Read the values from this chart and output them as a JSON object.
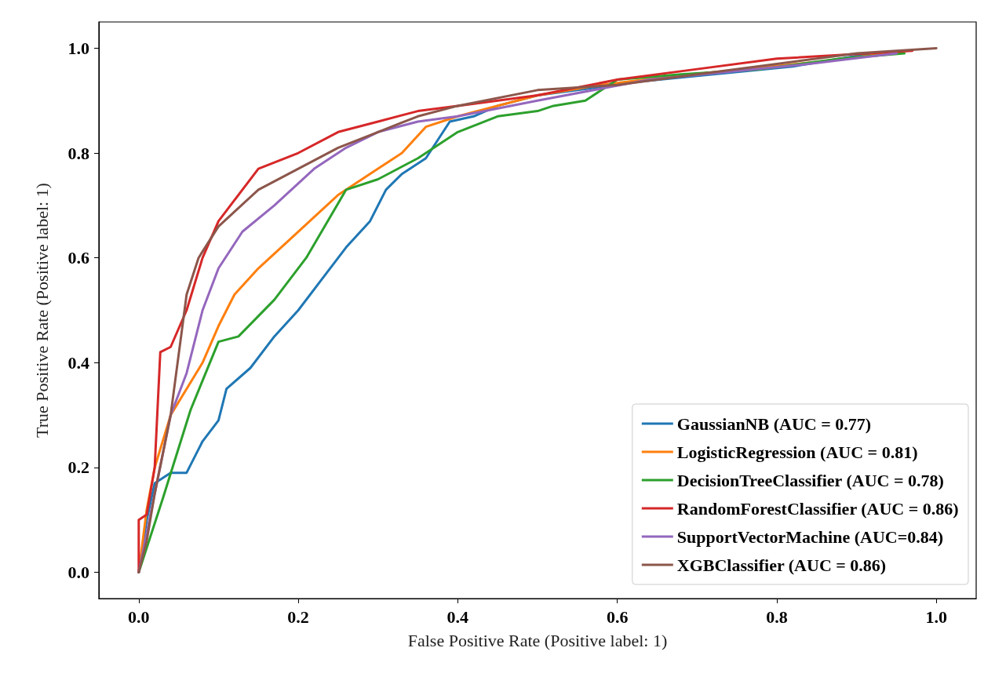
{
  "chart_data": {
    "type": "line",
    "xlabel": "False Positive Rate (Positive label: 1)",
    "ylabel": "True Positive Rate (Positive label: 1)",
    "xlim": [
      -0.05,
      1.05
    ],
    "ylim": [
      -0.05,
      1.05
    ],
    "xticks": [
      {
        "value": 0,
        "label": "0.0"
      },
      {
        "value": 0.2,
        "label": "0.2"
      },
      {
        "value": 0.4,
        "label": "0.4"
      },
      {
        "value": 0.6,
        "label": "0.6"
      },
      {
        "value": 0.8,
        "label": "0.8"
      },
      {
        "value": 1,
        "label": "1.0"
      }
    ],
    "yticks": [
      {
        "value": 0,
        "label": "0.0"
      },
      {
        "value": 0.2,
        "label": "0.2"
      },
      {
        "value": 0.4,
        "label": "0.4"
      },
      {
        "value": 0.6,
        "label": "0.6"
      },
      {
        "value": 0.8,
        "label": "0.8"
      },
      {
        "value": 1,
        "label": "1.0"
      }
    ],
    "grid": false,
    "legend": "bottom right",
    "line_style": "solid",
    "series": [
      {
        "name": "GaussianNB (AUC = 0.77)",
        "color": "#1f77b4",
        "x": [
          0,
          0.01,
          0.02,
          0.04,
          0.06,
          0.08,
          0.1,
          0.11,
          0.14,
          0.17,
          0.2,
          0.23,
          0.26,
          0.29,
          0.31,
          0.33,
          0.36,
          0.39,
          0.42,
          0.45,
          0.5,
          0.55,
          0.62,
          0.72,
          0.82,
          0.92
        ],
        "values": [
          0,
          0.1,
          0.17,
          0.19,
          0.19,
          0.25,
          0.29,
          0.35,
          0.39,
          0.45,
          0.5,
          0.56,
          0.62,
          0.67,
          0.73,
          0.76,
          0.79,
          0.86,
          0.87,
          0.89,
          0.91,
          0.92,
          0.935,
          0.95,
          0.965,
          0.99
        ]
      },
      {
        "name": "LogisticRegression (AUC = 0.81)",
        "color": "#ff7f0e",
        "x": [
          0,
          0.01,
          0.02,
          0.04,
          0.06,
          0.08,
          0.1,
          0.12,
          0.15,
          0.2,
          0.25,
          0.3,
          0.33,
          0.36,
          0.4,
          0.5,
          0.58,
          0.66,
          0.76,
          0.86,
          0.94
        ],
        "values": [
          0,
          0.12,
          0.2,
          0.3,
          0.35,
          0.4,
          0.47,
          0.53,
          0.58,
          0.65,
          0.72,
          0.77,
          0.8,
          0.85,
          0.87,
          0.91,
          0.93,
          0.945,
          0.96,
          0.975,
          0.99
        ]
      },
      {
        "name": "DecisionTreeClassifier (AUC = 0.78)",
        "color": "#2ca02c",
        "x": [
          0,
          0.03,
          0.065,
          0.1,
          0.125,
          0.17,
          0.21,
          0.26,
          0.3,
          0.35,
          0.4,
          0.45,
          0.5,
          0.52,
          0.56,
          0.6,
          0.68,
          0.78,
          0.88,
          0.96
        ],
        "values": [
          0,
          0.14,
          0.31,
          0.44,
          0.45,
          0.52,
          0.6,
          0.73,
          0.75,
          0.79,
          0.84,
          0.87,
          0.88,
          0.89,
          0.9,
          0.94,
          0.95,
          0.96,
          0.98,
          0.99
        ]
      },
      {
        "name": "RandomForestClassifier (AUC = 0.86)",
        "color": "#d62728",
        "x": [
          0,
          0,
          0.01,
          0.02,
          0.027,
          0.04,
          0.06,
          0.08,
          0.1,
          0.12,
          0.15,
          0.2,
          0.25,
          0.3,
          0.35,
          0.4,
          0.5,
          0.6,
          0.7,
          0.8,
          0.97
        ],
        "values": [
          0,
          0.1,
          0.11,
          0.2,
          0.42,
          0.43,
          0.5,
          0.6,
          0.67,
          0.71,
          0.77,
          0.8,
          0.84,
          0.86,
          0.88,
          0.89,
          0.91,
          0.94,
          0.96,
          0.98,
          0.995
        ]
      },
      {
        "name": "SupportVectorMachine (AUC=0.84)",
        "color": "#9467bd",
        "x": [
          0,
          0.02,
          0.04,
          0.06,
          0.08,
          0.1,
          0.13,
          0.17,
          0.22,
          0.26,
          0.3,
          0.35,
          0.4,
          0.5,
          0.64,
          0.74,
          0.84,
          0.95
        ],
        "values": [
          0,
          0.15,
          0.3,
          0.38,
          0.5,
          0.58,
          0.65,
          0.7,
          0.77,
          0.81,
          0.84,
          0.86,
          0.87,
          0.9,
          0.94,
          0.955,
          0.97,
          0.99
        ]
      },
      {
        "name": "XGBClassifier (AUC = 0.86)",
        "color": "#8c564b",
        "x": [
          0,
          0.01,
          0.02,
          0.04,
          0.06,
          0.075,
          0.1,
          0.15,
          0.2,
          0.25,
          0.3,
          0.35,
          0.4,
          0.5,
          0.6,
          0.7,
          0.8,
          0.9,
          1
        ],
        "values": [
          0,
          0.06,
          0.15,
          0.3,
          0.53,
          0.6,
          0.66,
          0.73,
          0.77,
          0.81,
          0.84,
          0.87,
          0.89,
          0.92,
          0.93,
          0.95,
          0.97,
          0.99,
          1
        ]
      }
    ]
  }
}
